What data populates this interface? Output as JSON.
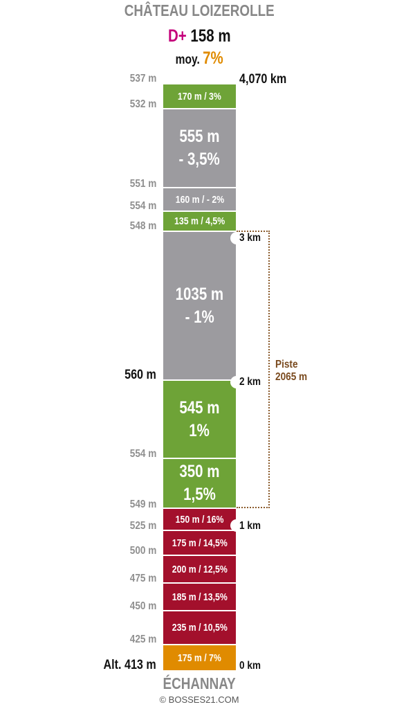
{
  "header": {
    "summit": "CHÂTEAU LOIZEROLLE",
    "dplus_prefix": "D+",
    "dplus_value": "158 m",
    "moy_prefix": "moy.",
    "moy_value": "7%"
  },
  "footer": {
    "start": "ÉCHANNAY",
    "credit": "© BOSSES21.COM"
  },
  "total_distance": "4,070 km",
  "piste": {
    "line1": "Piste",
    "line2": "2065 m"
  },
  "altitudes": [
    "537 m",
    "532 m",
    "551 m",
    "554 m",
    "548 m",
    "560 m",
    "554 m",
    "549 m",
    "525 m",
    "500 m",
    "475 m",
    "450 m",
    "425 m",
    "Alt. 413 m"
  ],
  "km_marks": [
    "3 km",
    "2 km",
    "1 km",
    "0 km"
  ],
  "segments": [
    {
      "line1": "170 m / 3%",
      "line2": "",
      "color": "green"
    },
    {
      "line1": "555 m",
      "line2": "- 3,5%",
      "color": "grey"
    },
    {
      "line1": "160 m / - 2%",
      "line2": "",
      "color": "grey"
    },
    {
      "line1": "135 m / 4,5%",
      "line2": "",
      "color": "green"
    },
    {
      "line1": "1035 m",
      "line2": "- 1%",
      "color": "grey"
    },
    {
      "line1": "545 m",
      "line2": "1%",
      "color": "green"
    },
    {
      "line1": "350 m",
      "line2": "1,5%",
      "color": "green"
    },
    {
      "line1": "150 m / 16%",
      "line2": "",
      "color": "red"
    },
    {
      "line1": "175 m / 14,5%",
      "line2": "",
      "color": "red"
    },
    {
      "line1": "200 m / 12,5%",
      "line2": "",
      "color": "red"
    },
    {
      "line1": "185 m / 13,5%",
      "line2": "",
      "color": "red"
    },
    {
      "line1": "235 m / 10,5%",
      "line2": "",
      "color": "red"
    },
    {
      "line1": "175 m / 7%",
      "line2": "",
      "color": "orange"
    }
  ],
  "colors": {
    "green": "#6ea337",
    "grey": "#9c9b9f",
    "red": "#a3102c",
    "orange": "#e08b00",
    "dplus": "#c4007a"
  }
}
